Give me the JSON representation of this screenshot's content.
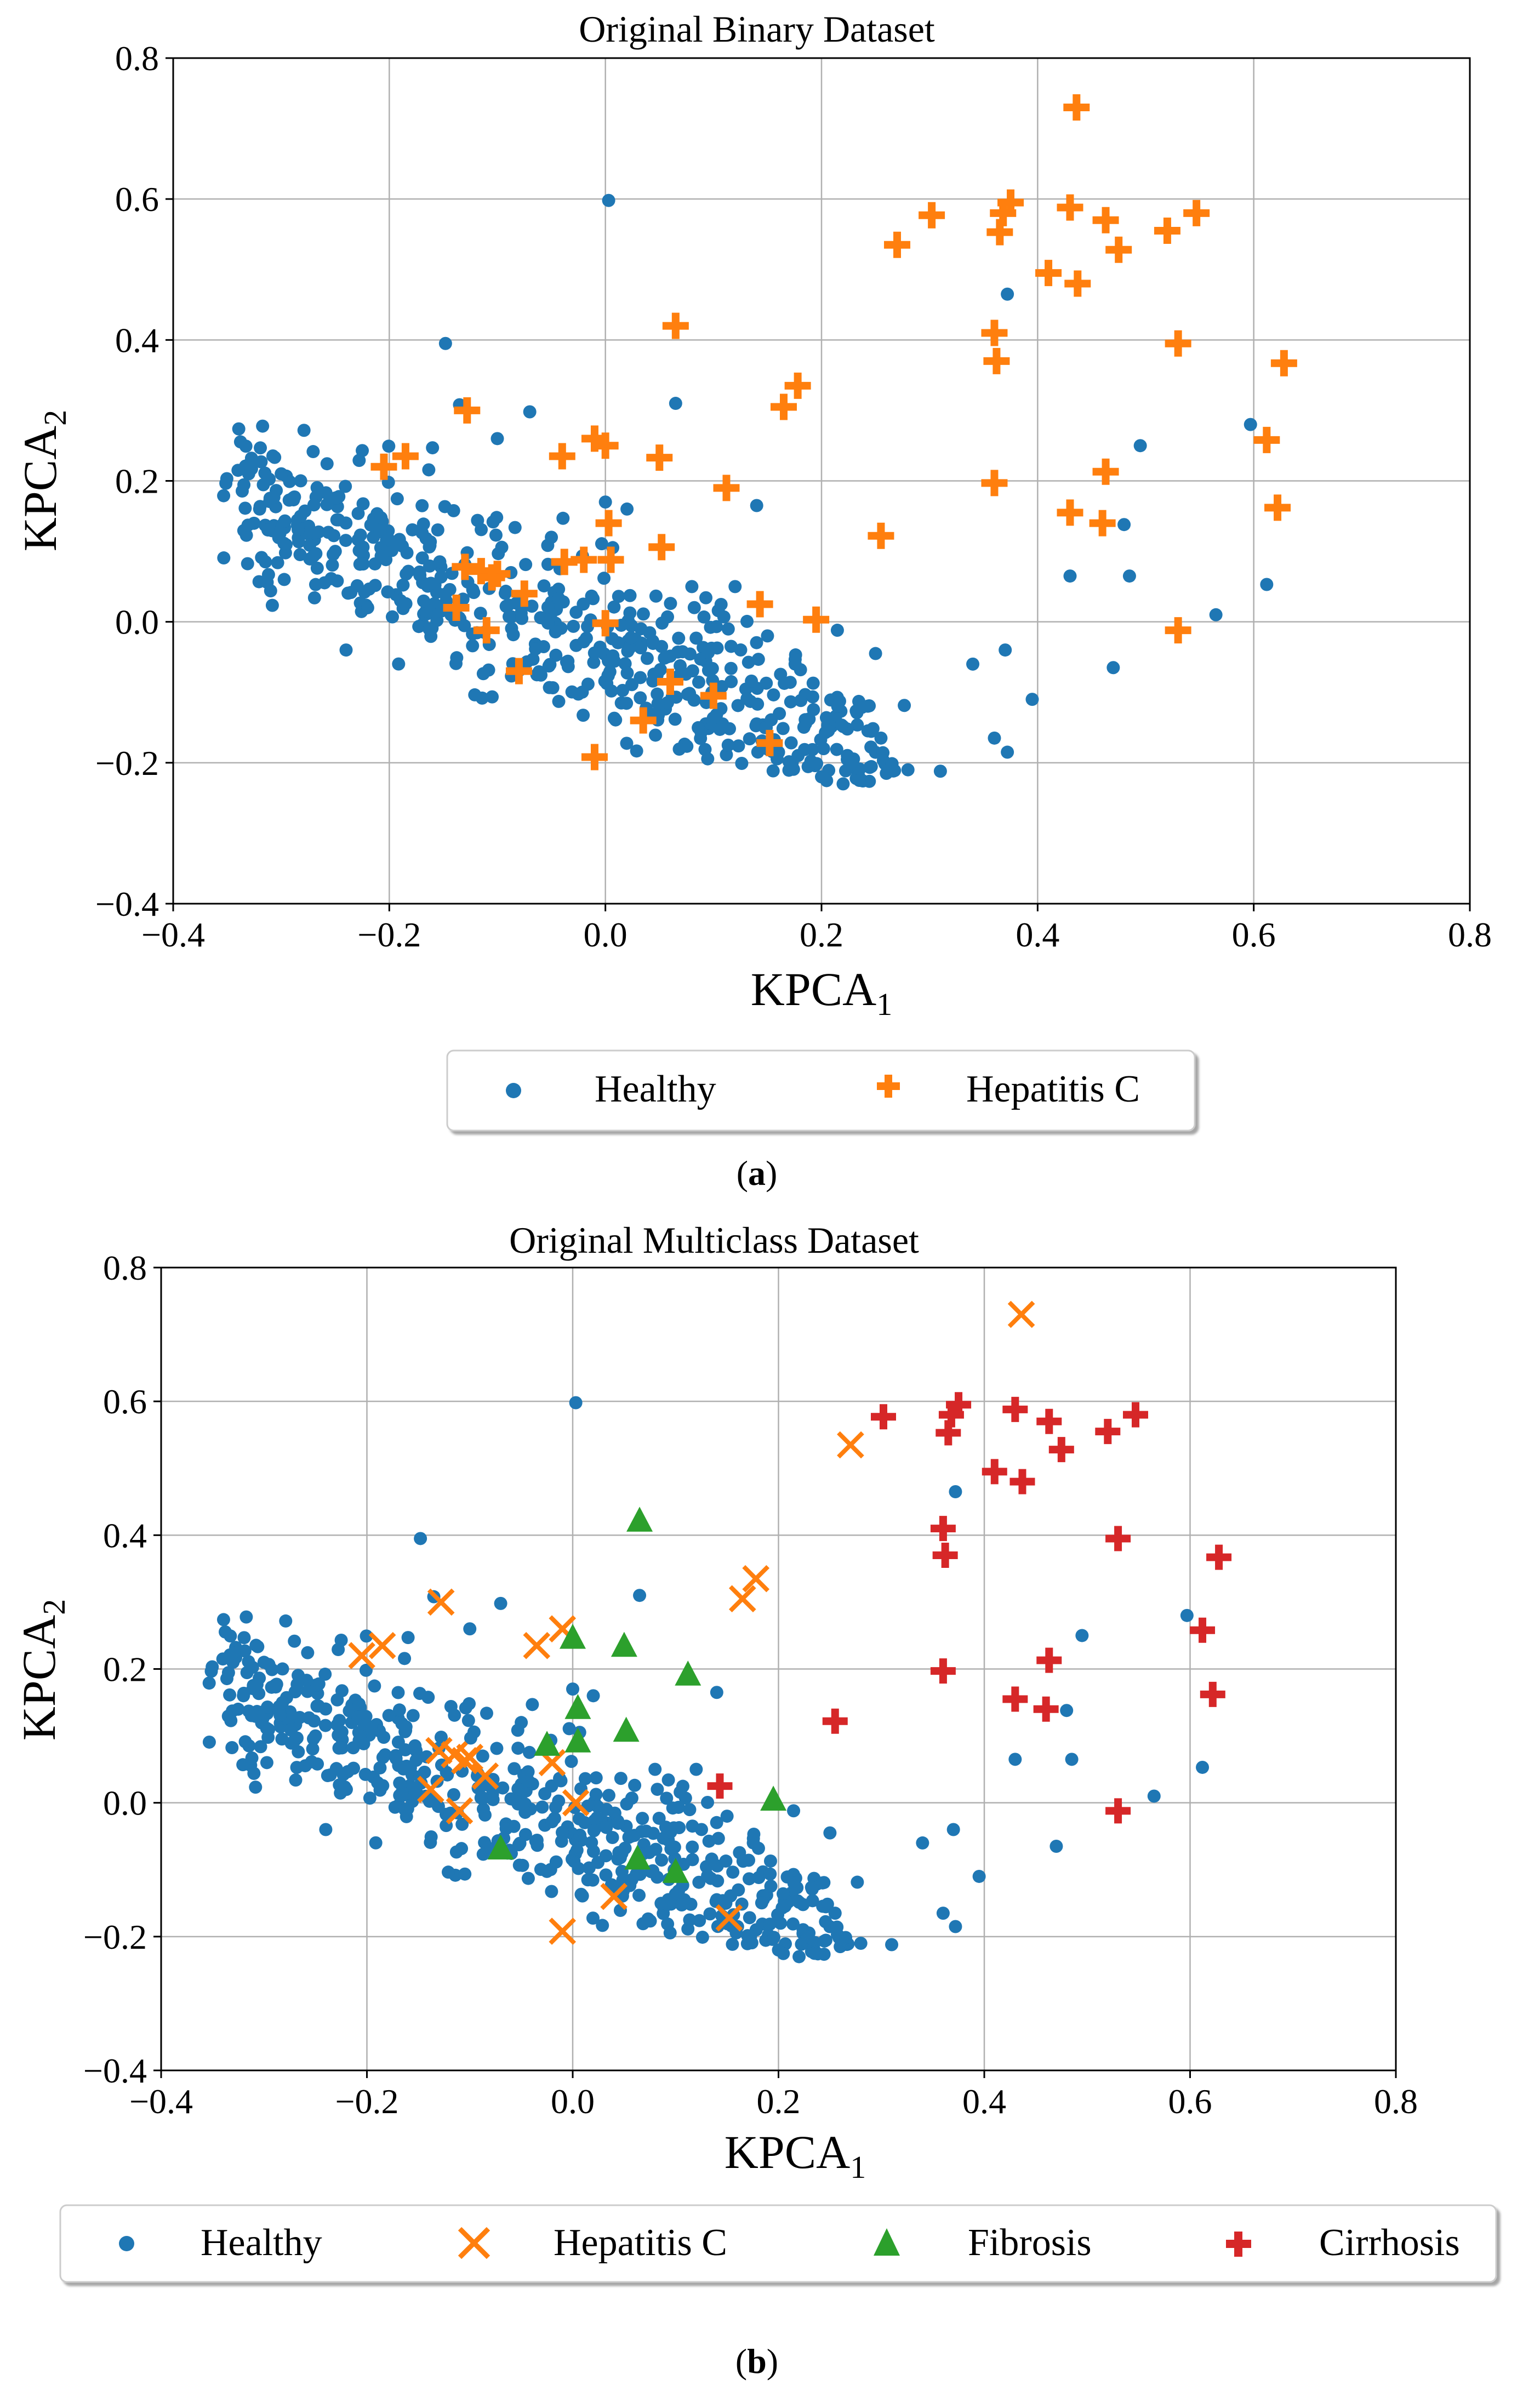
{
  "colors": {
    "healthy": "#1f77b4",
    "hepatitis": "#ff7f0e",
    "fibrosis": "#2ca02c",
    "cirrhosis": "#d62728",
    "grid": "#b0b0b0"
  },
  "chart_data": [
    {
      "type": "scatter",
      "panel_label": "a",
      "title": "Original Binary Dataset",
      "xlabel": "KPCA",
      "xlabel_sub": "1",
      "ylabel": "KPCA",
      "ylabel_sub": "2",
      "xlim": [
        -0.4,
        0.8
      ],
      "ylim": [
        -0.4,
        0.8
      ],
      "xticks": [
        -0.4,
        -0.2,
        0.0,
        0.2,
        0.4,
        0.6,
        0.8
      ],
      "yticks": [
        -0.4,
        -0.2,
        0.0,
        0.2,
        0.4,
        0.6,
        0.8
      ],
      "xtick_labels": [
        "−0.4",
        "−0.2",
        "0.0",
        "0.2",
        "0.4",
        "0.6",
        "0.8"
      ],
      "ytick_labels": [
        "−0.4",
        "−0.2",
        "0.0",
        "0.2",
        "0.4",
        "0.6",
        "0.8"
      ],
      "grid": true,
      "legend_position": "below",
      "series": [
        {
          "name": "Healthy",
          "marker": "dot",
          "color_key": "healthy",
          "points": []
        },
        {
          "name": "Hepatitis C",
          "marker": "plus",
          "color_key": "hepatitis",
          "points": [
            [
              0.436,
              0.73
            ],
            [
              0.375,
              0.595
            ],
            [
              0.368,
              0.58
            ],
            [
              0.43,
              0.588
            ],
            [
              0.302,
              0.577
            ],
            [
              0.365,
              0.553
            ],
            [
              0.463,
              0.57
            ],
            [
              0.27,
              0.535
            ],
            [
              0.52,
              0.555
            ],
            [
              0.547,
              0.58
            ],
            [
              0.475,
              0.528
            ],
            [
              0.41,
              0.495
            ],
            [
              0.437,
              0.48
            ],
            [
              0.065,
              0.42
            ],
            [
              0.36,
              0.41
            ],
            [
              0.362,
              0.37
            ],
            [
              0.53,
              0.395
            ],
            [
              0.628,
              0.367
            ],
            [
              -0.128,
              0.3
            ],
            [
              0.178,
              0.335
            ],
            [
              0.165,
              0.305
            ],
            [
              -0.185,
              0.235
            ],
            [
              -0.205,
              0.22
            ],
            [
              -0.01,
              0.26
            ],
            [
              0.0,
              0.25
            ],
            [
              -0.04,
              0.235
            ],
            [
              0.05,
              0.233
            ],
            [
              0.612,
              0.258
            ],
            [
              0.112,
              0.19
            ],
            [
              0.36,
              0.197
            ],
            [
              0.463,
              0.213
            ],
            [
              0.622,
              0.162
            ],
            [
              0.43,
              0.155
            ],
            [
              0.46,
              0.14
            ],
            [
              0.003,
              0.14
            ],
            [
              0.255,
              0.122
            ],
            [
              0.052,
              0.106
            ],
            [
              -0.02,
              0.088
            ],
            [
              0.005,
              0.088
            ],
            [
              -0.038,
              0.085
            ],
            [
              -0.13,
              0.078
            ],
            [
              -0.115,
              0.072
            ],
            [
              -0.1,
              0.068
            ],
            [
              -0.105,
              0.063
            ],
            [
              -0.075,
              0.04
            ],
            [
              -0.138,
              0.02
            ],
            [
              0.143,
              0.025
            ],
            [
              0.195,
              0.003
            ],
            [
              0.0,
              -0.002
            ],
            [
              -0.11,
              -0.012
            ],
            [
              0.53,
              -0.012
            ],
            [
              -0.08,
              -0.07
            ],
            [
              0.06,
              -0.085
            ],
            [
              0.1,
              -0.105
            ],
            [
              0.035,
              -0.14
            ],
            [
              0.152,
              -0.172
            ],
            [
              -0.01,
              -0.192
            ]
          ]
        }
      ],
      "legend": [
        "Healthy",
        "Hepatitis C"
      ]
    },
    {
      "type": "scatter",
      "panel_label": "b",
      "title": "Original Multiclass Dataset",
      "xlabel": "KPCA",
      "xlabel_sub": "1",
      "ylabel": "KPCA",
      "ylabel_sub": "2",
      "xlim": [
        -0.4,
        0.8
      ],
      "ylim": [
        -0.4,
        0.8
      ],
      "xticks": [
        -0.4,
        -0.2,
        0.0,
        0.2,
        0.4,
        0.6,
        0.8
      ],
      "yticks": [
        -0.4,
        -0.2,
        0.0,
        0.2,
        0.4,
        0.6,
        0.8
      ],
      "xtick_labels": [
        "−0.4",
        "−0.2",
        "0.0",
        "0.2",
        "0.4",
        "0.6",
        "0.8"
      ],
      "ytick_labels": [
        "−0.4",
        "−0.2",
        "0.0",
        "0.2",
        "0.4",
        "0.6",
        "0.8"
      ],
      "grid": true,
      "legend_position": "below",
      "series": [
        {
          "name": "Healthy",
          "marker": "dot",
          "color_key": "healthy",
          "points": []
        },
        {
          "name": "Hepatitis C",
          "marker": "x",
          "color_key": "hepatitis",
          "points": [
            [
              0.436,
              0.73
            ],
            [
              0.27,
              0.535
            ],
            [
              0.178,
              0.335
            ],
            [
              0.165,
              0.305
            ],
            [
              -0.128,
              0.3
            ],
            [
              -0.185,
              0.235
            ],
            [
              -0.205,
              0.22
            ],
            [
              -0.01,
              0.26
            ],
            [
              -0.035,
              0.235
            ],
            [
              -0.13,
              0.078
            ],
            [
              -0.115,
              0.072
            ],
            [
              -0.1,
              0.068
            ],
            [
              -0.105,
              0.063
            ],
            [
              -0.085,
              0.04
            ],
            [
              -0.02,
              0.06
            ],
            [
              -0.138,
              0.02
            ],
            [
              0.003,
              0.0
            ],
            [
              -0.11,
              -0.012
            ],
            [
              0.04,
              -0.14
            ],
            [
              0.152,
              -0.172
            ],
            [
              -0.01,
              -0.192
            ]
          ]
        },
        {
          "name": "Fibrosis",
          "marker": "triangle",
          "color_key": "fibrosis",
          "points": [
            [
              0.065,
              0.42
            ],
            [
              0.0,
              0.245
            ],
            [
              0.05,
              0.233
            ],
            [
              0.112,
              0.19
            ],
            [
              0.005,
              0.14
            ],
            [
              0.052,
              0.106
            ],
            [
              0.005,
              0.09
            ],
            [
              -0.025,
              0.085
            ],
            [
              0.195,
              0.003
            ],
            [
              -0.07,
              -0.07
            ],
            [
              0.063,
              -0.085
            ],
            [
              0.1,
              -0.105
            ]
          ]
        },
        {
          "name": "Cirrhosis",
          "marker": "plus",
          "color_key": "cirrhosis",
          "points": [
            [
              0.375,
              0.595
            ],
            [
              0.368,
              0.58
            ],
            [
              0.43,
              0.588
            ],
            [
              0.302,
              0.577
            ],
            [
              0.365,
              0.553
            ],
            [
              0.463,
              0.57
            ],
            [
              0.52,
              0.555
            ],
            [
              0.547,
              0.58
            ],
            [
              0.475,
              0.528
            ],
            [
              0.41,
              0.495
            ],
            [
              0.437,
              0.48
            ],
            [
              0.36,
              0.41
            ],
            [
              0.362,
              0.37
            ],
            [
              0.53,
              0.395
            ],
            [
              0.628,
              0.367
            ],
            [
              0.612,
              0.258
            ],
            [
              0.36,
              0.197
            ],
            [
              0.463,
              0.213
            ],
            [
              0.622,
              0.162
            ],
            [
              0.43,
              0.155
            ],
            [
              0.46,
              0.14
            ],
            [
              0.255,
              0.122
            ],
            [
              0.143,
              0.025
            ],
            [
              0.53,
              -0.012
            ]
          ]
        }
      ],
      "legend": [
        "Healthy",
        "Hepatitis C",
        "Fibrosis",
        "Cirrhosis"
      ]
    }
  ]
}
